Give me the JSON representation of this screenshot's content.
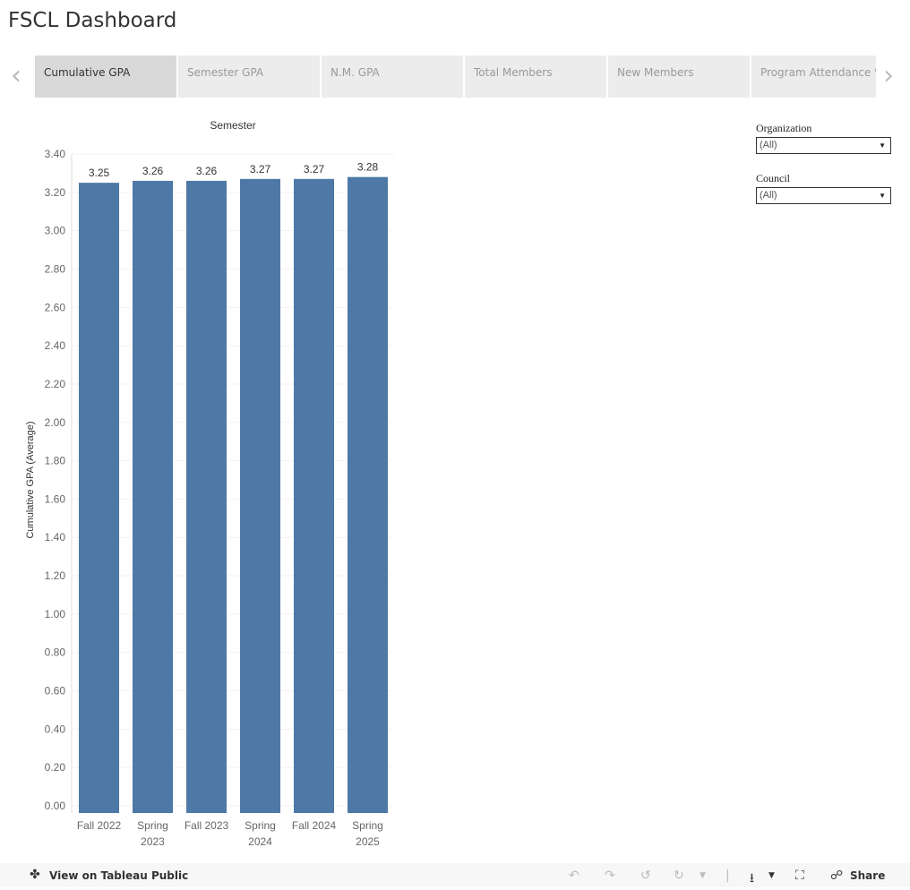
{
  "title": "FSCL Dashboard",
  "tabs": [
    {
      "label": "Cumulative GPA",
      "active": true
    },
    {
      "label": "Semester GPA"
    },
    {
      "label": "N.M. GPA"
    },
    {
      "label": "Total Members"
    },
    {
      "label": "New Members"
    },
    {
      "label": "Program Attendance %"
    }
  ],
  "filters": [
    {
      "label": "Organization",
      "value": "(All)"
    },
    {
      "label": "Council",
      "value": "(All)"
    }
  ],
  "footer": {
    "view_label": "View on Tableau Public",
    "share_label": "Share"
  },
  "chart_data": {
    "type": "bar",
    "title": "Semester",
    "ylabel": "Cumulative GPA (Average)",
    "xlabel": "",
    "categories": [
      [
        "Fall 2022"
      ],
      [
        "Spring",
        "2023"
      ],
      [
        "Fall 2023"
      ],
      [
        "Spring",
        "2024"
      ],
      [
        "Fall 2024"
      ],
      [
        "Spring",
        "2025"
      ]
    ],
    "values": [
      3.25,
      3.26,
      3.26,
      3.27,
      3.27,
      3.28
    ],
    "data_labels": [
      "3.25",
      "3.26",
      "3.26",
      "3.27",
      "3.27",
      "3.28"
    ],
    "ylim": [
      0,
      3.4
    ],
    "yticks": [
      "0.00",
      "0.20",
      "0.40",
      "0.60",
      "0.80",
      "1.00",
      "1.20",
      "1.40",
      "1.60",
      "1.80",
      "2.00",
      "2.20",
      "2.40",
      "2.60",
      "2.80",
      "3.00",
      "3.20",
      "3.40"
    ],
    "grid": true,
    "bar_color": "#4e79a7"
  }
}
